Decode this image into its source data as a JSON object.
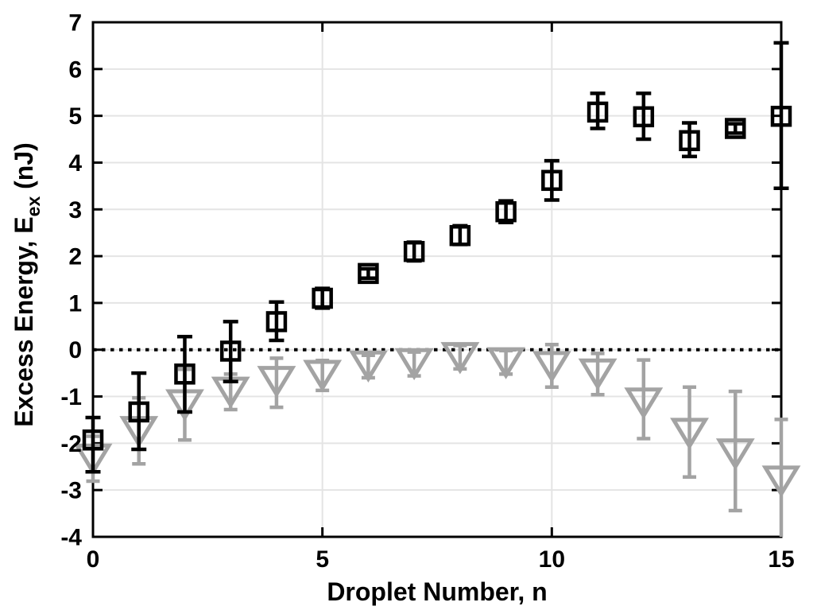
{
  "figure": {
    "background": "#ffffff",
    "xlabel": "Droplet Number, n",
    "ylabel": {
      "prefix": "Excess Energy, E",
      "sub": "ex",
      "suffix": " (nJ)"
    }
  },
  "chart_data": {
    "type": "scatter",
    "title": "",
    "xlabel": "Droplet Number, n",
    "ylabel": "Excess Energy, E_ex (nJ)",
    "xlim": [
      0,
      15
    ],
    "ylim": [
      -4,
      7
    ],
    "xticks": [
      0,
      5,
      10,
      15
    ],
    "yticks": [
      -4,
      -3,
      -2,
      -1,
      0,
      1,
      2,
      3,
      4,
      5,
      6,
      7
    ],
    "grid": true,
    "legend": "none",
    "zero_line": {
      "y": 0,
      "style": "dotted",
      "color": "#000000"
    },
    "colors": {
      "axis": "#000000",
      "grid": "#e4e4e4",
      "squares": "#000000",
      "triangles": "#a3a3a3"
    },
    "series": [
      {
        "name": "black-open-squares",
        "marker": "open-square",
        "color": "#000000",
        "points": [
          {
            "x": 0,
            "y": -1.93,
            "lo": -2.61,
            "hi": -1.45
          },
          {
            "x": 1,
            "y": -1.33,
            "lo": -2.13,
            "hi": -0.5
          },
          {
            "x": 2,
            "y": -0.52,
            "lo": -1.33,
            "hi": 0.28
          },
          {
            "x": 3,
            "y": -0.03,
            "lo": -0.68,
            "hi": 0.6
          },
          {
            "x": 4,
            "y": 0.6,
            "lo": 0.2,
            "hi": 1.02
          },
          {
            "x": 5,
            "y": 1.1,
            "lo": 0.89,
            "hi": 1.31
          },
          {
            "x": 6,
            "y": 1.63,
            "lo": 1.53,
            "hi": 1.73
          },
          {
            "x": 7,
            "y": 2.1,
            "lo": 1.9,
            "hi": 2.3
          },
          {
            "x": 8,
            "y": 2.44,
            "lo": 2.25,
            "hi": 2.65
          },
          {
            "x": 9,
            "y": 2.95,
            "lo": 2.72,
            "hi": 3.18
          },
          {
            "x": 10,
            "y": 3.62,
            "lo": 3.2,
            "hi": 4.04
          },
          {
            "x": 11,
            "y": 5.08,
            "lo": 4.73,
            "hi": 5.48
          },
          {
            "x": 12,
            "y": 4.98,
            "lo": 4.5,
            "hi": 5.48
          },
          {
            "x": 13,
            "y": 4.47,
            "lo": 4.13,
            "hi": 4.85
          },
          {
            "x": 14,
            "y": 4.73,
            "lo": 4.63,
            "hi": 4.83
          },
          {
            "x": 15,
            "y": 4.99,
            "lo": 3.45,
            "hi": 6.56
          }
        ]
      },
      {
        "name": "gray-open-triangles-down",
        "marker": "open-triangle-down",
        "color": "#a3a3a3",
        "points": [
          {
            "x": 0,
            "y": -2.33,
            "lo": -2.81,
            "hi": -1.85
          },
          {
            "x": 1,
            "y": -1.74,
            "lo": -2.44,
            "hi": -1.03
          },
          {
            "x": 2,
            "y": -1.17,
            "lo": -1.93,
            "hi": -0.42
          },
          {
            "x": 3,
            "y": -0.9,
            "lo": -1.28,
            "hi": -0.52
          },
          {
            "x": 4,
            "y": -0.67,
            "lo": -1.23,
            "hi": -0.18
          },
          {
            "x": 5,
            "y": -0.54,
            "lo": -0.87,
            "hi": -0.23
          },
          {
            "x": 6,
            "y": -0.34,
            "lo": -0.6,
            "hi": -0.12
          },
          {
            "x": 7,
            "y": -0.29,
            "lo": -0.56,
            "hi": -0.05
          },
          {
            "x": 8,
            "y": -0.16,
            "lo": -0.41,
            "hi": 0.09
          },
          {
            "x": 9,
            "y": -0.27,
            "lo": -0.52,
            "hi": -0.02
          },
          {
            "x": 10,
            "y": -0.35,
            "lo": -0.8,
            "hi": 0.11
          },
          {
            "x": 11,
            "y": -0.51,
            "lo": -0.96,
            "hi": -0.08
          },
          {
            "x": 12,
            "y": -1.13,
            "lo": -1.9,
            "hi": -0.22
          },
          {
            "x": 13,
            "y": -1.78,
            "lo": -2.72,
            "hi": -0.8
          },
          {
            "x": 14,
            "y": -2.22,
            "lo": -3.44,
            "hi": -0.89
          },
          {
            "x": 15,
            "y": -2.8,
            "lo": -4.0,
            "hi": -1.49
          }
        ]
      }
    ]
  }
}
